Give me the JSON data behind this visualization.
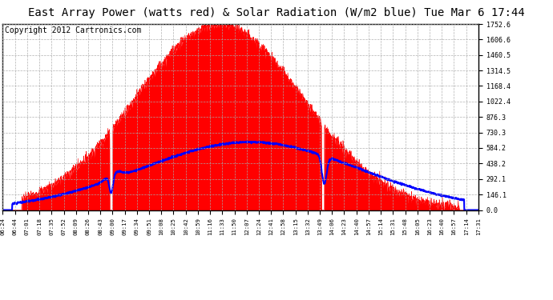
{
  "title": "East Array Power (watts red) & Solar Radiation (W/m2 blue) Tue Mar 6 17:44",
  "copyright": "Copyright 2012 Cartronics.com",
  "ymax": 1752.6,
  "yticks": [
    0.0,
    146.1,
    292.1,
    438.2,
    584.2,
    730.3,
    876.3,
    1022.4,
    1168.4,
    1314.5,
    1460.5,
    1606.6,
    1752.6
  ],
  "xtick_labels": [
    "06:24",
    "06:44",
    "07:01",
    "07:18",
    "07:35",
    "07:52",
    "08:09",
    "08:26",
    "08:43",
    "09:00",
    "09:17",
    "09:34",
    "09:51",
    "10:08",
    "10:25",
    "10:42",
    "10:59",
    "11:16",
    "11:33",
    "11:50",
    "12:07",
    "12:24",
    "12:41",
    "12:58",
    "13:15",
    "13:32",
    "13:49",
    "14:06",
    "14:23",
    "14:40",
    "14:57",
    "15:14",
    "15:31",
    "15:48",
    "16:05",
    "16:23",
    "16:40",
    "16:57",
    "17:14",
    "17:31"
  ],
  "bg_color": "#ffffff",
  "plot_bg_color": "#ffffff",
  "grid_color": "#aaaaaa",
  "fill_color": "#ff0000",
  "line_color": "#0000ff",
  "border_color": "#000000",
  "title_fontsize": 10,
  "copyright_fontsize": 7
}
